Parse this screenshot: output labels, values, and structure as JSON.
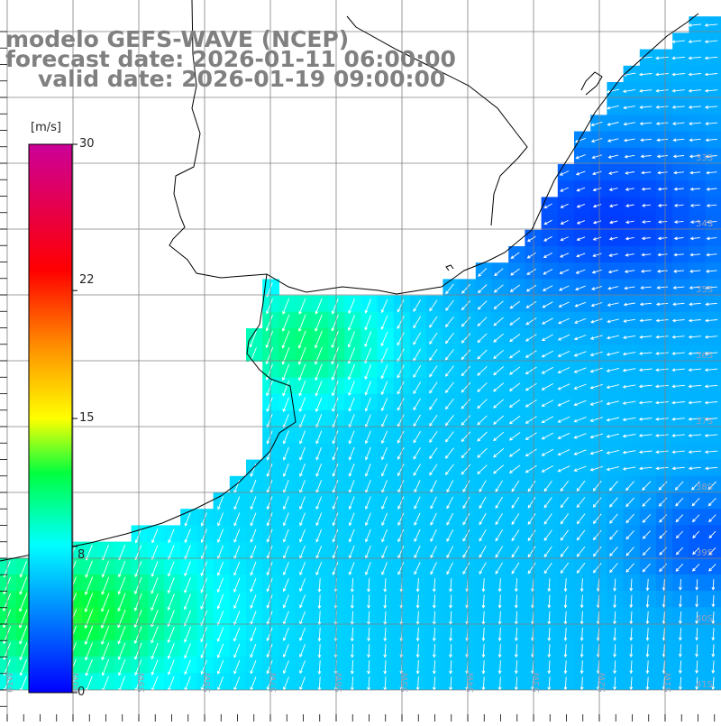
{
  "title": {
    "line1": "modelo GEFS-WAVE (NCEP)",
    "line2": "forecast date: 2026-01-11 06:00:00",
    "line3": "valid date: 2026-01-19 09:00:00"
  },
  "colorbar": {
    "unit": "[m/s]",
    "ticks": [
      "30",
      "22",
      "15",
      "8",
      "0"
    ],
    "tick_values": [
      30,
      22,
      15,
      8,
      0
    ],
    "range": [
      0,
      30
    ],
    "colors": [
      "#0000ff",
      "#00a0ff",
      "#00ffff",
      "#00ff00",
      "#ffff00",
      "#ff8000",
      "#ff0000",
      "#cc0099"
    ]
  },
  "map": {
    "land_color": "#ffffff",
    "grid_color": "#808080",
    "coast_color": "#000000",
    "arrow_color": "#ffffff",
    "lat_labels": [
      "33S",
      "34S",
      "35S",
      "36S",
      "37S",
      "38S",
      "39S",
      "40S",
      "41S"
    ],
    "lon_labels": [
      "61W",
      "60W",
      "59W",
      "58W",
      "57W",
      "56W",
      "55W",
      "54W",
      "53W",
      "52W",
      "51W"
    ]
  }
}
